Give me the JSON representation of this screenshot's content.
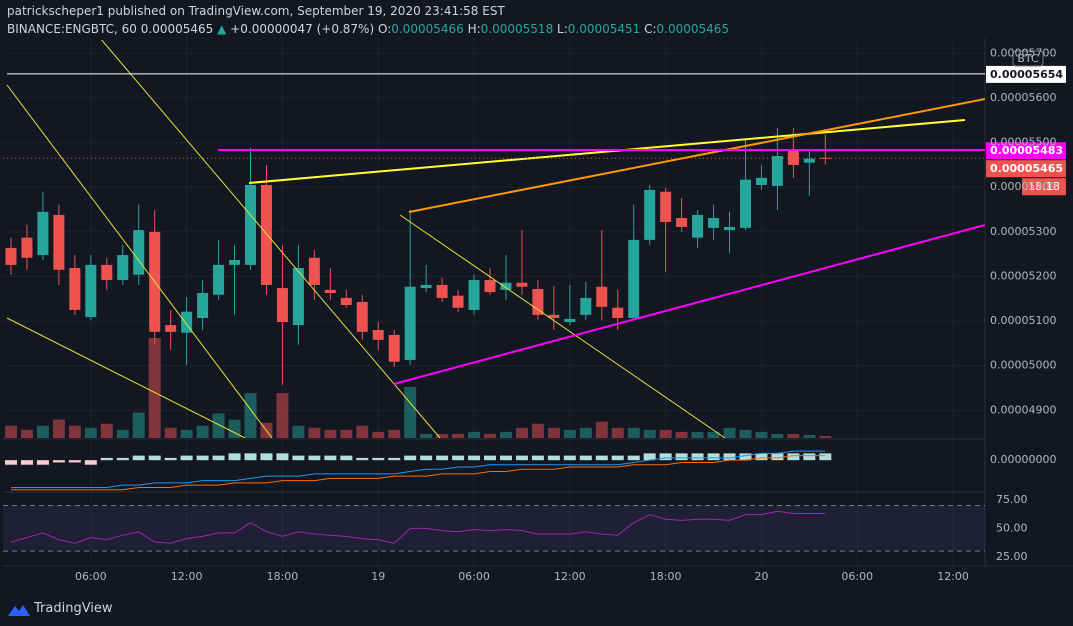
{
  "header": {
    "author_line": "patrickscheper1 published on TradingView.com, September 19, 2020 23:41:58 EST",
    "symbol": "BINANCE:ENGBTC, 60",
    "last": "0.00005465",
    "arrow": "▲",
    "change": "+0.00000047 (+0.87%)",
    "ohlc": [
      {
        "key": "O:",
        "value": "0.00005466"
      },
      {
        "key": "H:",
        "value": "0.00005518"
      },
      {
        "key": "L:",
        "value": "0.00005451"
      },
      {
        "key": "C:",
        "value": "0.00005465"
      }
    ]
  },
  "footer": {
    "logo": "TradingView"
  },
  "chart_data": {
    "type": "candlestick",
    "up_color": "#26a69a",
    "down_color": "#ef5350",
    "grid": true,
    "open": [
      5.264e-05,
      5.287e-05,
      5.248e-05,
      5.338e-05,
      5.219e-05,
      5.109e-05,
      5.226e-05,
      5.192e-05,
      5.204e-05,
      5.3e-05,
      5.091e-05,
      5.074e-05,
      5.107e-05,
      5.159e-05,
      5.226e-05,
      5.226e-05,
      5.405e-05,
      5.174e-05,
      5.091e-05,
      5.242e-05,
      5.17e-05,
      5.152e-05,
      5.143e-05,
      5.08e-05,
      5.069e-05,
      5.013e-05,
      5.174e-05,
      5.181e-05,
      5.157e-05,
      5.125e-05,
      5.192e-05,
      5.17e-05,
      5.186e-05,
      5.172e-05,
      5.114e-05,
      5.098e-05,
      5.114e-05,
      5.177e-05,
      5.13e-05,
      5.107e-05,
      5.282e-05,
      5.39e-05,
      5.331e-05,
      5.287e-05,
      5.309e-05,
      5.304e-05,
      5.309e-05,
      5.405e-05,
      5.403e-05,
      5.484e-05,
      5.455e-05,
      5.466e-05
    ],
    "high": [
      5.287e-05,
      5.316e-05,
      5.39e-05,
      5.361e-05,
      5.248e-05,
      5.248e-05,
      5.242e-05,
      5.271e-05,
      5.361e-05,
      5.349e-05,
      5.125e-05,
      5.154e-05,
      5.192e-05,
      5.282e-05,
      5.271e-05,
      5.488e-05,
      5.45e-05,
      5.271e-05,
      5.271e-05,
      5.26e-05,
      5.219e-05,
      5.17e-05,
      5.159e-05,
      5.098e-05,
      5.08e-05,
      5.349e-05,
      5.226e-05,
      5.197e-05,
      5.17e-05,
      5.204e-05,
      5.219e-05,
      5.248e-05,
      5.304e-05,
      5.192e-05,
      5.179e-05,
      5.181e-05,
      5.188e-05,
      5.304e-05,
      5.17e-05,
      5.361e-05,
      5.405e-05,
      5.399e-05,
      5.376e-05,
      5.349e-05,
      5.361e-05,
      5.345e-05,
      5.506e-05,
      5.45e-05,
      5.533e-05,
      5.533e-05,
      5.484e-05,
      5.518e-05
    ],
    "low": [
      5.204e-05,
      5.215e-05,
      5.237e-05,
      5.181e-05,
      5.114e-05,
      5.103e-05,
      5.17e-05,
      5.181e-05,
      5.181e-05,
      5.047e-05,
      5.035e-05,
      5.002e-05,
      5.08e-05,
      5.148e-05,
      5.114e-05,
      5.215e-05,
      5.159e-05,
      4.957e-05,
      5.047e-05,
      5.148e-05,
      5.148e-05,
      5.13e-05,
      5.058e-05,
      5.035e-05,
      4.997e-05,
      5.002e-05,
      5.165e-05,
      5.143e-05,
      5.121e-05,
      5.114e-05,
      5.159e-05,
      5.148e-05,
      5.159e-05,
      5.103e-05,
      5.08e-05,
      5.091e-05,
      5.103e-05,
      5.103e-05,
      5.08e-05,
      5.103e-05,
      5.271e-05,
      5.21e-05,
      5.3e-05,
      5.264e-05,
      5.282e-05,
      5.253e-05,
      5.304e-05,
      5.394e-05,
      5.349e-05,
      5.421e-05,
      5.381e-05,
      5.451e-05
    ],
    "close": [
      5.226e-05,
      5.242e-05,
      5.345e-05,
      5.215e-05,
      5.125e-05,
      5.226e-05,
      5.192e-05,
      5.248e-05,
      5.304e-05,
      5.076e-05,
      5.076e-05,
      5.121e-05,
      5.163e-05,
      5.226e-05,
      5.237e-05,
      5.405e-05,
      5.181e-05,
      5.098e-05,
      5.219e-05,
      5.181e-05,
      5.163e-05,
      5.136e-05,
      5.076e-05,
      5.058e-05,
      5.009e-05,
      5.177e-05,
      5.181e-05,
      5.152e-05,
      5.13e-05,
      5.192e-05,
      5.165e-05,
      5.186e-05,
      5.177e-05,
      5.114e-05,
      5.107e-05,
      5.105e-05,
      5.152e-05,
      5.132e-05,
      5.107e-05,
      5.282e-05,
      5.394e-05,
      5.322e-05,
      5.311e-05,
      5.338e-05,
      5.331e-05,
      5.311e-05,
      5.417e-05,
      5.421e-05,
      5.47e-05,
      5.45e-05,
      5.464e-05,
      5.465e-05
    ],
    "volume": [
      12,
      8,
      12,
      18,
      12,
      10,
      14,
      8,
      25,
      98,
      10,
      8,
      12,
      24,
      18,
      44,
      15,
      44,
      12,
      10,
      8,
      8,
      12,
      6,
      8,
      50,
      4,
      4,
      4,
      6,
      4,
      6,
      10,
      14,
      10,
      8,
      10,
      16,
      10,
      10,
      8,
      8,
      6,
      6,
      6,
      10,
      8,
      6,
      4,
      4,
      3,
      2
    ],
    "xlim": [
      -0.5,
      61
    ],
    "xticks": [
      {
        "value": 5,
        "label": "06:00"
      },
      {
        "value": 11,
        "label": "12:00"
      },
      {
        "value": 17,
        "label": "18:00"
      },
      {
        "value": 23,
        "label": "19"
      },
      {
        "value": 29,
        "label": "06:00"
      },
      {
        "value": 35,
        "label": "12:00"
      },
      {
        "value": 41,
        "label": "18:00"
      },
      {
        "value": 47,
        "label": "20"
      },
      {
        "value": 53,
        "label": "06:00"
      },
      {
        "value": 59,
        "label": "12:00"
      }
    ],
    "ylim": [
      4.838e-05,
      5.73e-05
    ],
    "yticks": [
      {
        "value": 5.7e-05,
        "label": "0.00005700"
      },
      {
        "value": 5.6e-05,
        "label": "0.00005600"
      },
      {
        "value": 5.5e-05,
        "label": "0.00005500"
      },
      {
        "value": 5.4e-05,
        "label": "0.00005400"
      },
      {
        "value": 5.3e-05,
        "label": "0.00005300"
      },
      {
        "value": 5.2e-05,
        "label": "0.00005200"
      },
      {
        "value": 5.1e-05,
        "label": "0.00005100"
      },
      {
        "value": 5e-05,
        "label": "0.00005000"
      },
      {
        "value": 4.9e-05,
        "label": "0.00004900"
      }
    ],
    "currency": "BTC",
    "levels": [
      {
        "value": 5.654e-05,
        "label": "0.00005654",
        "color": "#ffffff",
        "line": "solid"
      },
      {
        "value": 5.483e-05,
        "label": "0.00005483",
        "color": "#ff00ff",
        "line": "none"
      },
      {
        "value": 5.465e-05,
        "label": "0.00005465",
        "color": "#ef5350",
        "line": "dotted"
      }
    ],
    "countdown": "18:18",
    "macd": {
      "ylim": [
        -1.4e-06,
        8e-07
      ],
      "yticks": [
        {
          "value": 0,
          "label": "0.00000000"
        }
      ],
      "hist_up_color": "#b2dfdb",
      "hist_down_color": "#ffcdd2",
      "macd_color": "#2196f3",
      "signal_color": "#ff6d00",
      "histogram": [
        -2e-07,
        -2e-07,
        -2e-07,
        -1e-07,
        -1e-07,
        -2e-07,
        1e-07,
        1e-07,
        2e-07,
        2e-07,
        1e-07,
        2e-07,
        2e-07,
        2e-07,
        3e-07,
        3e-07,
        3e-07,
        3e-07,
        2e-07,
        2e-07,
        2e-07,
        2e-07,
        1e-07,
        1e-07,
        1e-07,
        2e-07,
        2e-07,
        2e-07,
        2e-07,
        2e-07,
        2e-07,
        2e-07,
        2e-07,
        2e-07,
        2e-07,
        2e-07,
        2e-07,
        2e-07,
        2e-07,
        2e-07,
        3e-07,
        3e-07,
        3e-07,
        3e-07,
        3e-07,
        3e-07,
        3e-07,
        3e-07,
        3e-07,
        3e-07,
        3e-07,
        3e-07
      ],
      "macd": [
        -1.2e-06,
        -1.2e-06,
        -1.2e-06,
        -1.2e-06,
        -1.2e-06,
        -1.2e-06,
        -1.2e-06,
        -1.1e-06,
        -1.1e-06,
        -1e-06,
        -1e-06,
        -1e-06,
        -9e-07,
        -9e-07,
        -9e-07,
        -8e-07,
        -7e-07,
        -7e-07,
        -7e-07,
        -6e-07,
        -6e-07,
        -6e-07,
        -6e-07,
        -6e-07,
        -6e-07,
        -5e-07,
        -4e-07,
        -4e-07,
        -3e-07,
        -3e-07,
        -2e-07,
        -2e-07,
        -2e-07,
        -2e-07,
        -2e-07,
        -2e-07,
        -2e-07,
        -2e-07,
        -2e-07,
        -1e-07,
        0,
        1e-07,
        1e-07,
        1e-07,
        1e-07,
        1e-07,
        2e-07,
        3e-07,
        3e-07,
        4e-07,
        4e-07,
        4e-07
      ],
      "signal": [
        -1.3e-06,
        -1.3e-06,
        -1.3e-06,
        -1.3e-06,
        -1.3e-06,
        -1.3e-06,
        -1.3e-06,
        -1.3e-06,
        -1.2e-06,
        -1.2e-06,
        -1.2e-06,
        -1.1e-06,
        -1.1e-06,
        -1.1e-06,
        -1e-06,
        -1e-06,
        -1e-06,
        -9e-07,
        -9e-07,
        -9e-07,
        -8e-07,
        -8e-07,
        -8e-07,
        -8e-07,
        -7e-07,
        -7e-07,
        -7e-07,
        -6e-07,
        -6e-07,
        -6e-07,
        -5e-07,
        -5e-07,
        -4e-07,
        -4e-07,
        -4e-07,
        -3e-07,
        -3e-07,
        -3e-07,
        -3e-07,
        -2e-07,
        -2e-07,
        -2e-07,
        -1e-07,
        -1e-07,
        -1e-07,
        0,
        0,
        1e-07,
        1e-07,
        2e-07,
        2e-07,
        2e-07
      ]
    },
    "rsi": {
      "ylim": [
        17,
        81
      ],
      "yticks": [
        {
          "value": 75,
          "label": "75.00"
        },
        {
          "value": 50,
          "label": "50.00"
        },
        {
          "value": 25,
          "label": "25.00"
        }
      ],
      "band": [
        30,
        70
      ],
      "color": "#9c27b0",
      "values": [
        38,
        42,
        46,
        40,
        37,
        42,
        40,
        44,
        47,
        38,
        37,
        41,
        43,
        46,
        46,
        55,
        47,
        43,
        47,
        45,
        44,
        43,
        41,
        40,
        37,
        50,
        50,
        48,
        47,
        49,
        48,
        49,
        48,
        45,
        45,
        45,
        47,
        45,
        44,
        55,
        62,
        58,
        57,
        58,
        58,
        57,
        62,
        62,
        65,
        63,
        63,
        63
      ]
    }
  }
}
